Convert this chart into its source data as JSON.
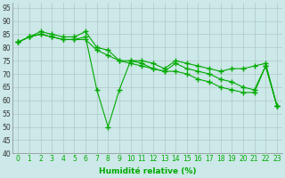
{
  "series": [
    {
      "x": [
        0,
        1,
        2,
        3,
        4,
        5,
        6,
        7,
        8,
        9,
        10,
        11,
        12,
        13,
        14,
        15,
        16,
        17,
        18,
        19,
        20,
        21,
        22,
        23
      ],
      "y": [
        82,
        84,
        86,
        85,
        84,
        84,
        86,
        80,
        79,
        75,
        75,
        75,
        74,
        72,
        75,
        74,
        73,
        72,
        71,
        72,
        72,
        73,
        74,
        58
      ]
    },
    {
      "x": [
        0,
        1,
        2,
        3,
        4,
        5,
        6,
        7,
        8,
        9,
        10,
        11,
        12,
        13,
        14,
        15,
        16,
        17,
        18,
        19,
        20,
        21,
        22,
        23
      ],
      "y": [
        82,
        84,
        85,
        84,
        83,
        83,
        83,
        79,
        77,
        75,
        74,
        73,
        72,
        71,
        71,
        70,
        68,
        67,
        65,
        64,
        63,
        63,
        73,
        58
      ]
    },
    {
      "x": [
        0,
        1,
        2,
        3,
        4,
        5,
        6,
        7,
        8,
        9,
        10,
        11,
        12,
        13,
        14,
        15,
        16,
        17,
        18,
        19,
        20,
        21,
        22,
        23
      ],
      "y": [
        82,
        84,
        85,
        84,
        83,
        83,
        84,
        64,
        50,
        64,
        75,
        74,
        72,
        71,
        74,
        72,
        71,
        70,
        68,
        67,
        65,
        64,
        73,
        58
      ]
    }
  ],
  "xlabel": "Humidité relative (%)",
  "ylim": [
    40,
    97
  ],
  "xlim": [
    -0.5,
    23.5
  ],
  "yticks": [
    40,
    45,
    50,
    55,
    60,
    65,
    70,
    75,
    80,
    85,
    90,
    95
  ],
  "xticks": [
    0,
    1,
    2,
    3,
    4,
    5,
    6,
    7,
    8,
    9,
    10,
    11,
    12,
    13,
    14,
    15,
    16,
    17,
    18,
    19,
    20,
    21,
    22,
    23
  ],
  "grid_color": "#b0c8c8",
  "bg_color": "#cce8e8",
  "line_color": "#00aa00",
  "marker": "+",
  "markersize": 4,
  "linewidth": 0.8,
  "tick_fontsize": 5.5,
  "xlabel_fontsize": 6.5
}
